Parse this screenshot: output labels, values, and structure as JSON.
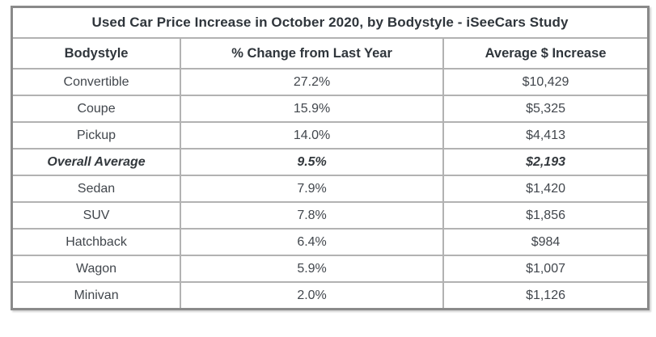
{
  "page": {
    "background": "#ffffff"
  },
  "style": {
    "outer_border_color": "#8a8a8a",
    "inner_border_color": "#b2b2b2",
    "header_text_color": "#2f353b",
    "body_text_color": "#41464c"
  },
  "chart_data": {
    "type": "table",
    "title": "Used Car Price Increase in October 2020, by Bodystyle - iSeeCars Study",
    "columns": [
      "Bodystyle",
      "% Change from Last Year",
      "Average $ Increase"
    ],
    "rows": [
      {
        "bodystyle": "Convertible",
        "pct_change": "27.2%",
        "avg_increase": "$10,429",
        "pct_change_value": 27.2,
        "avg_increase_value": 10429,
        "emphasized": false
      },
      {
        "bodystyle": "Coupe",
        "pct_change": "15.9%",
        "avg_increase": "$5,325",
        "pct_change_value": 15.9,
        "avg_increase_value": 5325,
        "emphasized": false
      },
      {
        "bodystyle": "Pickup",
        "pct_change": "14.0%",
        "avg_increase": "$4,413",
        "pct_change_value": 14.0,
        "avg_increase_value": 4413,
        "emphasized": false
      },
      {
        "bodystyle": "Overall Average",
        "pct_change": "9.5%",
        "avg_increase": "$2,193",
        "pct_change_value": 9.5,
        "avg_increase_value": 2193,
        "emphasized": true
      },
      {
        "bodystyle": "Sedan",
        "pct_change": "7.9%",
        "avg_increase": "$1,420",
        "pct_change_value": 7.9,
        "avg_increase_value": 1420,
        "emphasized": false
      },
      {
        "bodystyle": "SUV",
        "pct_change": "7.8%",
        "avg_increase": "$1,856",
        "pct_change_value": 7.8,
        "avg_increase_value": 1856,
        "emphasized": false
      },
      {
        "bodystyle": "Hatchback",
        "pct_change": "6.4%",
        "avg_increase": "$984",
        "pct_change_value": 6.4,
        "avg_increase_value": 984,
        "emphasized": false
      },
      {
        "bodystyle": "Wagon",
        "pct_change": "5.9%",
        "avg_increase": "$1,007",
        "pct_change_value": 5.9,
        "avg_increase_value": 1007,
        "emphasized": false
      },
      {
        "bodystyle": "Minivan",
        "pct_change": "2.0%",
        "avg_increase": "$1,126",
        "pct_change_value": 2.0,
        "avg_increase_value": 1126,
        "emphasized": false
      }
    ],
    "layout": {
      "column_width_pct": [
        26.5,
        41.3,
        32.2
      ],
      "grid": true,
      "text_align": "center"
    }
  }
}
